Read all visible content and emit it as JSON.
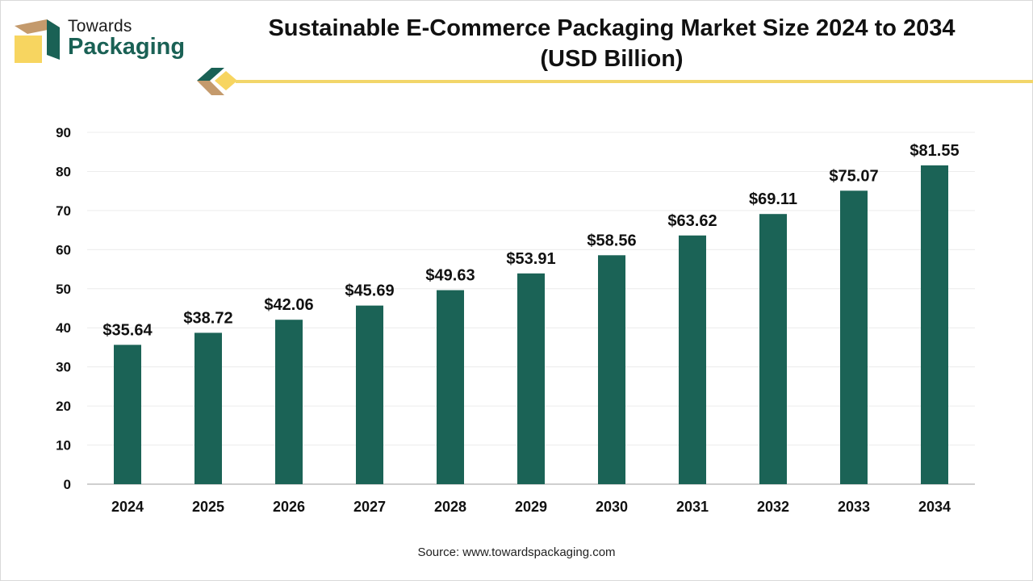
{
  "brand": {
    "line1": "Towards",
    "line2": "Packaging",
    "accent_color": "#1a6155",
    "highlight_color": "#f7d560",
    "tan_color": "#c49a6c"
  },
  "header": {
    "title_line1": "Sustainable E-Commerce Packaging Market Size 2024 to 2034",
    "title_line2": "(USD Billion)"
  },
  "source": "Source: www.towardspackaging.com",
  "chart_data": {
    "type": "bar",
    "title": "Sustainable E-Commerce Packaging Market Size 2024 to 2034 (USD Billion)",
    "xlabel": "",
    "ylabel": "",
    "categories": [
      "2024",
      "2025",
      "2026",
      "2027",
      "2028",
      "2029",
      "2030",
      "2031",
      "2032",
      "2033",
      "2034"
    ],
    "values": [
      35.64,
      38.72,
      42.06,
      45.69,
      49.63,
      53.91,
      58.56,
      63.62,
      69.11,
      75.07,
      81.55
    ],
    "data_labels": [
      "$35.64",
      "$38.72",
      "$42.06",
      "$45.69",
      "$49.63",
      "$53.91",
      "$58.56",
      "$63.62",
      "$69.11",
      "$75.07",
      "$81.55"
    ],
    "ylim": [
      0,
      90
    ],
    "yticks": [
      0,
      10,
      20,
      30,
      40,
      50,
      60,
      70,
      80,
      90
    ],
    "grid": true,
    "legend": "none",
    "bar_color": "#1b6356"
  }
}
